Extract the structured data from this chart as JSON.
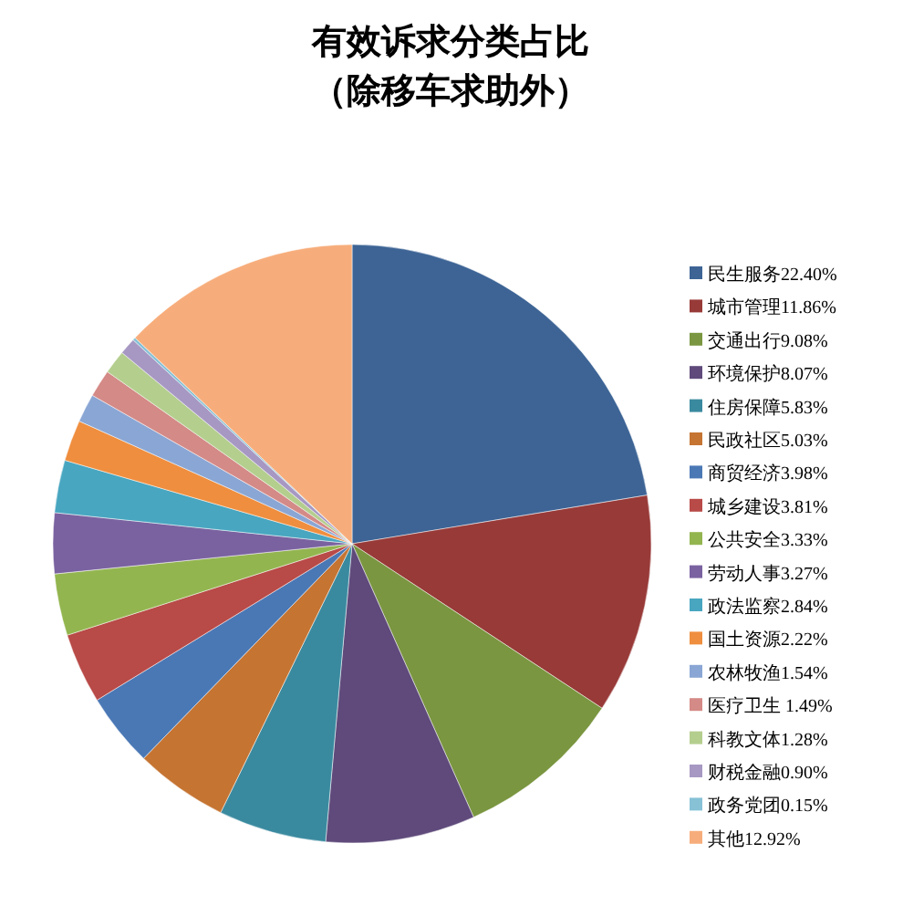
{
  "chart_data": {
    "type": "pie",
    "title": "有效诉求分类占比",
    "subtitle": "（除移车求助外）",
    "categories": [
      "民生服务22.40%",
      "城市管理11.86%",
      "交通出行9.08%",
      "环境保护8.07%",
      "住房保障5.83%",
      "民政社区5.03%",
      "商贸经济3.98%",
      "城乡建设3.81%",
      "公共安全3.33%",
      "劳动人事3.27%",
      "政法监察2.84%",
      "国土资源2.22%",
      "农林牧渔1.54%",
      "医疗卫生 1.49%",
      "科教文体1.28%",
      "财税金融0.90%",
      "政务党团0.15%",
      "其他12.92%"
    ],
    "values": [
      22.4,
      11.86,
      9.08,
      8.07,
      5.83,
      5.03,
      3.98,
      3.81,
      3.33,
      3.27,
      2.84,
      2.22,
      1.54,
      1.49,
      1.28,
      0.9,
      0.15,
      12.92
    ],
    "colors": [
      "#3d6495",
      "#983a38",
      "#7a9640",
      "#5f4a7b",
      "#3a8a9f",
      "#c57432",
      "#4a78b5",
      "#b84a47",
      "#93b54f",
      "#7a62a0",
      "#48a6c0",
      "#ef8e3e",
      "#8aa6d4",
      "#d48a87",
      "#b4ce8e",
      "#a798c3",
      "#86c1d6",
      "#f7ad7b"
    ],
    "legend": "right"
  }
}
